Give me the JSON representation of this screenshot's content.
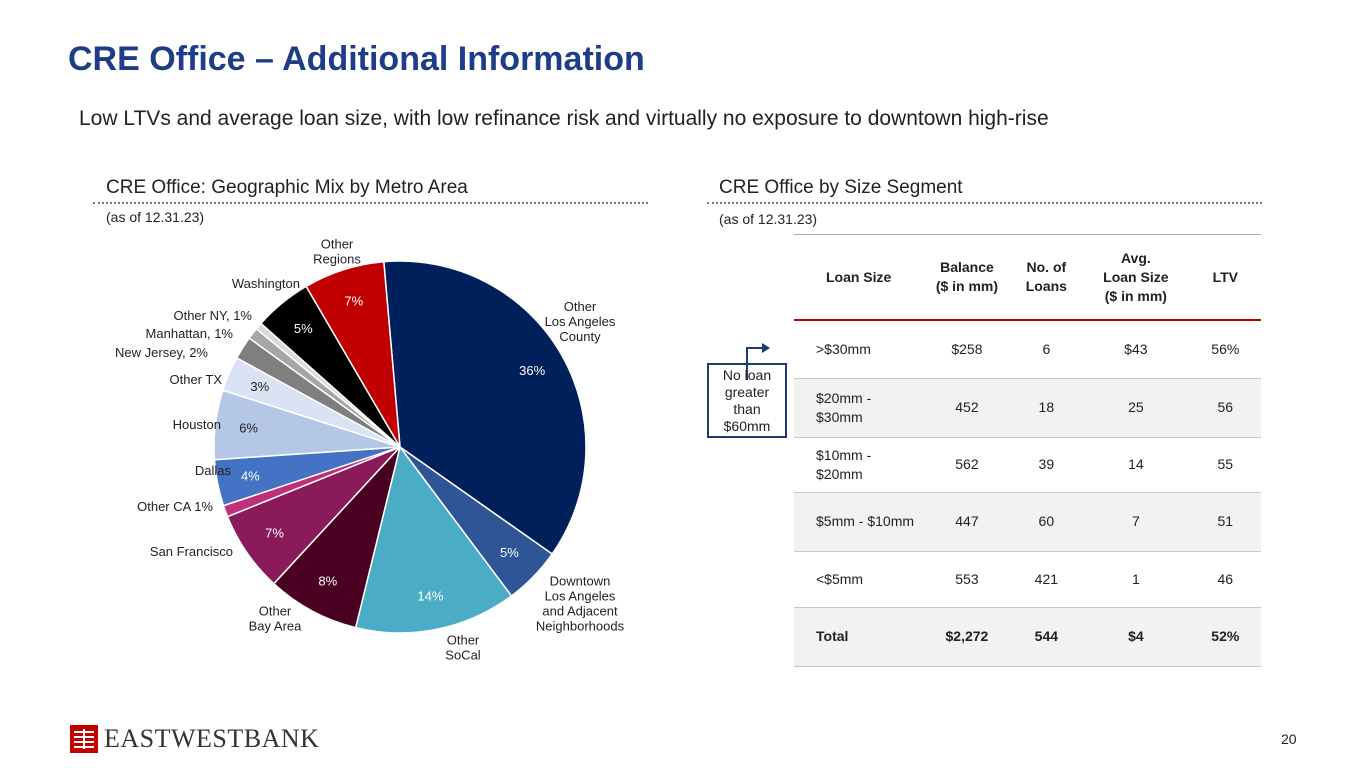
{
  "page": {
    "title": "CRE Office – Additional Information",
    "subtitle": "Low LTVs and average loan size, with low refinance risk and virtually no exposure to downtown high-rise",
    "page_number": "20",
    "logo_text": "EASTWESTBANK"
  },
  "left_section": {
    "heading": "CRE Office: Geographic Mix by Metro Area",
    "as_of": "(as of 12.31.23)"
  },
  "right_section": {
    "heading": "CRE Office by Size Segment",
    "as_of": "(as of 12.31.23)",
    "callout_lines": [
      "No loan",
      "greater",
      "than",
      "$60mm"
    ]
  },
  "chart_data": [
    {
      "type": "pie",
      "title": "CRE Office: Geographic Mix by Metro Area",
      "slices": [
        {
          "label": [
            "Other",
            "Los Angeles",
            "County"
          ],
          "value": 36,
          "display": "36%",
          "color": "#00205b",
          "pct_color": "#ffffff"
        },
        {
          "label": [
            "Downtown",
            "Los Angeles",
            "and Adjacent",
            "Neighborhoods"
          ],
          "value": 5,
          "display": "5%",
          "color": "#2f5597",
          "pct_color": "#ffffff"
        },
        {
          "label": [
            "Other",
            "SoCal"
          ],
          "value": 14,
          "display": "14%",
          "color": "#4bacc6",
          "pct_color": "#ffffff"
        },
        {
          "label": [
            "Other",
            "Bay Area"
          ],
          "value": 8,
          "display": "8%",
          "color": "#4a0020",
          "pct_color": "#ffffff"
        },
        {
          "label": [
            "San Francisco"
          ],
          "value": 7,
          "display": "7%",
          "color": "#8b1a5a",
          "pct_color": "#ffffff"
        },
        {
          "label": [
            "Other CA 1%"
          ],
          "value": 1,
          "display": "",
          "color": "#c0307a",
          "pct_color": "#ffffff"
        },
        {
          "label": [
            "Dallas"
          ],
          "value": 4,
          "display": "4%",
          "color": "#4472c4",
          "pct_color": "#ffffff"
        },
        {
          "label": [
            "Houston"
          ],
          "value": 6,
          "display": "6%",
          "color": "#b4c7e7",
          "pct_color": "#222222"
        },
        {
          "label": [
            "Other TX"
          ],
          "value": 3,
          "display": "3%",
          "color": "#dae3f3",
          "pct_color": "#222222"
        },
        {
          "label": [
            "New Jersey, 2%"
          ],
          "value": 2,
          "display": "",
          "color": "#7f7f7f",
          "pct_color": "#ffffff"
        },
        {
          "label": [
            "Manhattan, 1%"
          ],
          "value": 1,
          "display": "",
          "color": "#a6a6a6",
          "pct_color": "#ffffff"
        },
        {
          "label": [
            "Other NY, 1%"
          ],
          "value": 0.6,
          "display": "",
          "color": "#d9d9d9",
          "pct_color": "#ffffff"
        },
        {
          "label": [
            "Washington"
          ],
          "value": 5,
          "display": "5%",
          "color": "#000000",
          "pct_color": "#ffffff"
        },
        {
          "label": [
            "Other",
            "Regions"
          ],
          "value": 7,
          "display": "7%",
          "color": "#c00000",
          "pct_color": "#ffffff"
        }
      ]
    },
    {
      "type": "table",
      "title": "CRE Office by Size Segment",
      "headers": [
        [
          "Loan Size"
        ],
        [
          "Balance",
          "($ in mm)"
        ],
        [
          "No. of",
          "Loans"
        ],
        [
          "Avg.",
          "Loan Size",
          "($ in mm)"
        ],
        [
          "LTV"
        ]
      ],
      "rows": [
        {
          "cells": [
            ">$30mm",
            "$258",
            "6",
            "$43",
            "56%"
          ],
          "shade": false,
          "total": false,
          "height": 58
        },
        {
          "cells": [
            "$20mm -\n$30mm",
            "452",
            "18",
            "25",
            "56"
          ],
          "shade": true,
          "total": false,
          "height": 59
        },
        {
          "cells": [
            "$10mm -\n$20mm",
            "562",
            "39",
            "14",
            "55"
          ],
          "shade": false,
          "total": false,
          "height": 55
        },
        {
          "cells": [
            "$5mm - $10mm",
            "447",
            "60",
            "7",
            "51"
          ],
          "shade": true,
          "total": false,
          "height": 59
        },
        {
          "cells": [
            "<$5mm",
            "553",
            "421",
            "1",
            "46"
          ],
          "shade": false,
          "total": false,
          "height": 56
        },
        {
          "cells": [
            "Total",
            "$2,272",
            "544",
            "$4",
            "52%"
          ],
          "shade": true,
          "total": true,
          "height": 59
        }
      ]
    }
  ]
}
